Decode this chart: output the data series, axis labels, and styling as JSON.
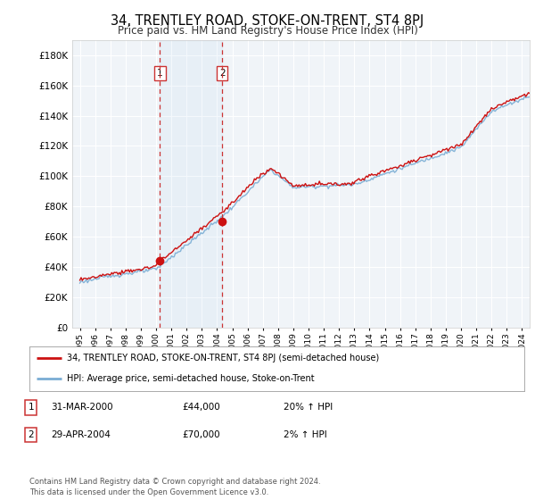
{
  "title": "34, TRENTLEY ROAD, STOKE-ON-TRENT, ST4 8PJ",
  "subtitle": "Price paid vs. HM Land Registry's House Price Index (HPI)",
  "title_fontsize": 10.5,
  "subtitle_fontsize": 8.5,
  "ylabel_ticks": [
    "£0",
    "£20K",
    "£40K",
    "£60K",
    "£80K",
    "£100K",
    "£120K",
    "£140K",
    "£160K",
    "£180K"
  ],
  "ytick_values": [
    0,
    20000,
    40000,
    60000,
    80000,
    100000,
    120000,
    140000,
    160000,
    180000
  ],
  "ylim": [
    0,
    190000
  ],
  "background_color": "#ffffff",
  "plot_bg_color": "#f0f4f8",
  "grid_color": "#ffffff",
  "hpi_color": "#7aadd4",
  "price_color": "#cc1111",
  "marker_color": "#cc1111",
  "sale1": {
    "date_x": 2000.25,
    "price": 44000,
    "label": "1"
  },
  "sale2": {
    "date_x": 2004.33,
    "price": 70000,
    "label": "2"
  },
  "vline_color": "#cc3333",
  "legend_label_price": "34, TRENTLEY ROAD, STOKE-ON-TRENT, ST4 8PJ (semi-detached house)",
  "legend_label_hpi": "HPI: Average price, semi-detached house, Stoke-on-Trent",
  "table_row1": [
    "1",
    "31-MAR-2000",
    "£44,000",
    "20% ↑ HPI"
  ],
  "table_row2": [
    "2",
    "29-APR-2004",
    "£70,000",
    "2% ↑ HPI"
  ],
  "footer": "Contains HM Land Registry data © Crown copyright and database right 2024.\nThis data is licensed under the Open Government Licence v3.0.",
  "xmin": 1995,
  "xmax": 2024
}
